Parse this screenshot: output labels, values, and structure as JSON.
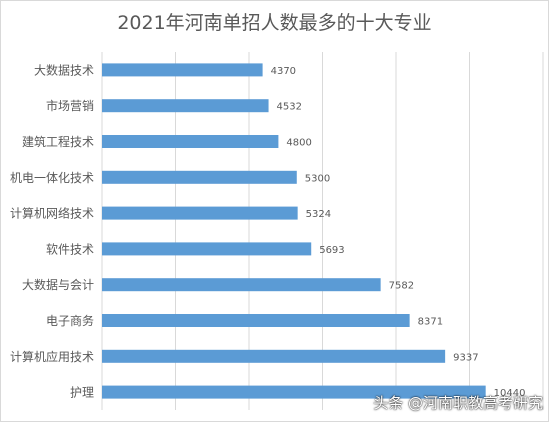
{
  "chart_data": {
    "type": "bar",
    "orientation": "horizontal",
    "title": "2021年河南单招人数最多的十大专业",
    "categories": [
      "大数据技术",
      "市场营销",
      "建筑工程技术",
      "机电一体化技术",
      "计算机网络技术",
      "软件技术",
      "大数据与会计",
      "电子商务",
      "计算机应用技术",
      "护理"
    ],
    "values": [
      4370,
      4532,
      4800,
      5300,
      5324,
      5693,
      7582,
      8371,
      9337,
      10440
    ],
    "xlim": [
      0,
      12000
    ],
    "grid": true,
    "legend": "none",
    "colors": {
      "bar": "#5b9bd5",
      "grid": "#d9d9d9",
      "label": "#595959"
    }
  },
  "watermark": "头条 @河南职教高考研究"
}
